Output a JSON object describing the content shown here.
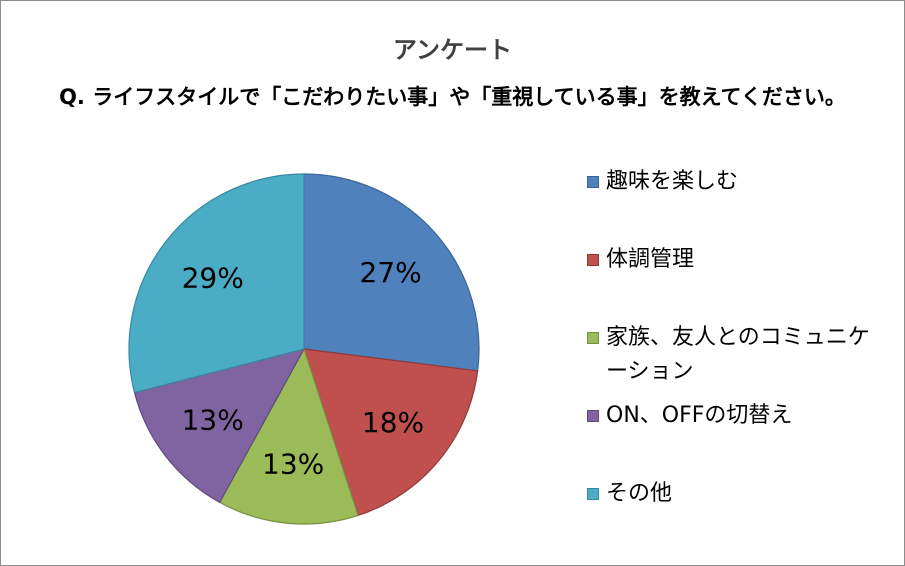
{
  "chart_data": {
    "type": "pie",
    "title": "アンケート",
    "subtitle": "Q. ライフスタイルで「こだわりたい事」や「重視している事」を教えてください。",
    "legend_position": "right",
    "slices": [
      {
        "label": "趣味を楽しむ",
        "value": 27,
        "value_label": "27%",
        "color": "#4f81bd",
        "edge": "#3a6595"
      },
      {
        "label": "体調管理",
        "value": 18,
        "value_label": "18%",
        "color": "#c0504d",
        "edge": "#94393a"
      },
      {
        "label": "家族、友人とのコミュニケーション",
        "value": 13,
        "value_label": "13%",
        "color": "#9bbb59",
        "edge": "#768f43"
      },
      {
        "label": "ON、OFFの切替え",
        "value": 13,
        "value_label": "13%",
        "color": "#8064a2",
        "edge": "#5f4a7b"
      },
      {
        "label": "その他",
        "value": 29,
        "value_label": "29%",
        "color": "#4bacc6",
        "edge": "#3889a0"
      }
    ]
  }
}
